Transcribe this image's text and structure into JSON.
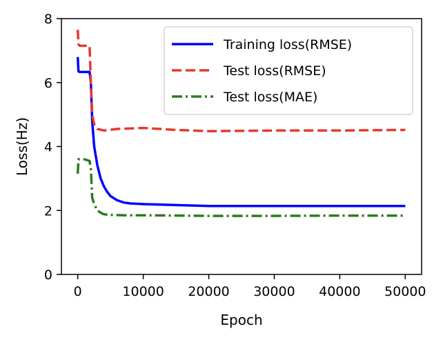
{
  "chart_data": {
    "type": "line",
    "title": "",
    "xlabel": "Epoch",
    "ylabel": "Loss(Hz)",
    "xlim": [
      -2500,
      52500
    ],
    "ylim": [
      0,
      8
    ],
    "xticks": [
      0,
      10000,
      20000,
      30000,
      40000,
      50000
    ],
    "xtick_labels": [
      "0",
      "10000",
      "20000",
      "30000",
      "40000",
      "50000"
    ],
    "yticks": [
      0,
      2,
      4,
      6,
      8
    ],
    "ytick_labels": [
      "0",
      "2",
      "4",
      "6",
      "8"
    ],
    "grid": false,
    "legend_position": "top-right",
    "series": [
      {
        "name": "Training loss(RMSE)",
        "color": "#0000ff",
        "linestyle": "solid",
        "x": [
          0,
          100,
          300,
          1000,
          1800,
          2000,
          2200,
          2500,
          3000,
          3500,
          4000,
          4500,
          5000,
          6000,
          7000,
          8000,
          10000,
          15000,
          20000,
          30000,
          40000,
          50000
        ],
        "y": [
          6.8,
          6.35,
          6.33,
          6.33,
          6.33,
          6.0,
          4.8,
          4.0,
          3.4,
          3.0,
          2.75,
          2.58,
          2.45,
          2.32,
          2.25,
          2.22,
          2.2,
          2.17,
          2.14,
          2.14,
          2.14,
          2.14
        ]
      },
      {
        "name": "Test loss(RMSE)",
        "color": "#e8382d",
        "linestyle": "dashed",
        "x": [
          0,
          100,
          300,
          1000,
          1800,
          2000,
          2200,
          2500,
          3000,
          4000,
          6000,
          10000,
          15000,
          20000,
          30000,
          40000,
          50000
        ],
        "y": [
          7.65,
          7.2,
          7.15,
          7.15,
          7.15,
          6.0,
          5.0,
          4.7,
          4.55,
          4.5,
          4.55,
          4.58,
          4.52,
          4.48,
          4.5,
          4.5,
          4.52
        ]
      },
      {
        "name": "Test loss(MAE)",
        "color": "#2e7a1f",
        "linestyle": "dashdot",
        "x": [
          0,
          100,
          300,
          1000,
          1800,
          2000,
          2200,
          2500,
          3000,
          3500,
          4000,
          5000,
          7000,
          10000,
          20000,
          30000,
          40000,
          50000
        ],
        "y": [
          3.15,
          3.6,
          3.6,
          3.6,
          3.55,
          3.3,
          2.4,
          2.2,
          2.0,
          1.93,
          1.88,
          1.86,
          1.85,
          1.85,
          1.83,
          1.83,
          1.84,
          1.84
        ]
      }
    ]
  }
}
